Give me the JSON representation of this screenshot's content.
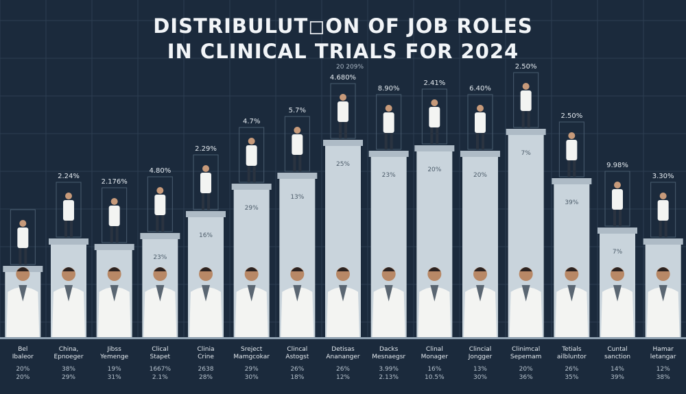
{
  "title_lines": [
    "DISTRIBULUT◻ON OF JOB ROLES",
    "IN CLINICAL TRIALS FOR 2024"
  ],
  "top_label": "20 209%",
  "colors": {
    "background": "#1b2a3c",
    "grid": "#2c3e52",
    "bar_fill": "#c9d4dc",
    "bar_cap": "#aebbc6",
    "title": "#f2f5f8",
    "label": "#e6ecf1",
    "coat": "#f3f4f2"
  },
  "chart_data": {
    "type": "bar",
    "title": "DISTRIBULUT◻ON OF JOB ROLES IN CLINICAL TRIALS FOR 2024",
    "grid": true,
    "categories": [
      [
        "Bel",
        "Ibaleor"
      ],
      [
        "China,",
        "Epnoeger"
      ],
      [
        "Jibss",
        "Yemenge"
      ],
      [
        "Clical",
        "Stapet"
      ],
      [
        "Clinia",
        "Crine"
      ],
      [
        "Sreject",
        "Mamgcokar"
      ],
      [
        "Clincal",
        "Astogst"
      ],
      [
        "Detisas",
        "Anananger"
      ],
      [
        "Dacks",
        "Mesnaegsr"
      ],
      [
        "Clinal",
        "Monager"
      ],
      [
        "Clincial",
        "Jongger"
      ],
      [
        "Clinimcal",
        "Sepemam"
      ],
      [
        "Tetials",
        "ailbluntor"
      ],
      [
        "Cuntal",
        "sanction"
      ],
      [
        "Hamar",
        "letangar"
      ]
    ],
    "values": [
      12,
      17,
      16,
      18,
      22,
      27,
      29,
      35,
      33,
      34,
      33,
      37,
      28,
      19,
      17
    ],
    "bar_labels": [
      "",
      "",
      "",
      "23%",
      "16%",
      "29%",
      "13%",
      "25%",
      "23%",
      "20%",
      "20%",
      "7%",
      "39%",
      "7%",
      ""
    ],
    "top_labels": [
      "",
      "2.24%",
      "2.176%",
      "4.80%",
      "2.29%",
      "4.7%",
      "5.7%",
      "4.680%",
      "8.90%",
      "2.41%",
      "6.40%",
      "2.50%",
      "2.50%",
      "9.98%",
      "3.30%"
    ],
    "row1": [
      "20%",
      "38%",
      "19%",
      "1667%",
      "2638",
      "29%",
      "26%",
      "26%",
      "3.99%",
      "16%",
      "13%",
      "20%",
      "26%",
      "14%",
      "12%"
    ],
    "row2": [
      "20%",
      "29%",
      "31%",
      "2.1%",
      "28%",
      "30%",
      "18%",
      "12%",
      "2.13%",
      "10.5%",
      "30%",
      "36%",
      "35%",
      "39%",
      "38%"
    ]
  }
}
